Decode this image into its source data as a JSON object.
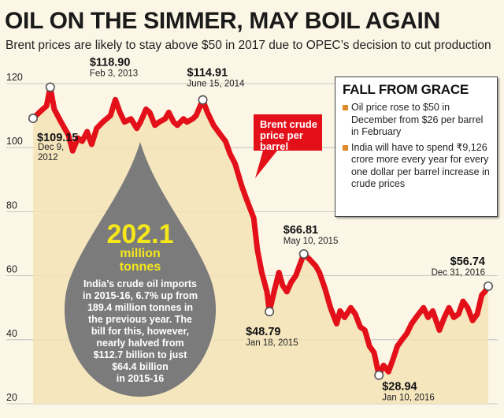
{
  "title": "OIL ON THE SIMMER, MAY BOIL AGAIN",
  "subtitle": "Brent prices are likely to stay above $50 in 2017 due to OPEC’s decision to cut production",
  "info_box": {
    "heading": "FALL FROM GRACE",
    "items": [
      "Oil price rose to $50 in December from $26 per barrel in February",
      "India will have to spend ₹9,126 crore more every year for every one dollar per barrel increase in crude prices"
    ],
    "bullet_color": "#e08a2e"
  },
  "callout": {
    "lines": [
      "Brent crude",
      "price per",
      "barrel"
    ],
    "color": "#e3101a"
  },
  "drop": {
    "big_number": "202.1",
    "unit_lines": [
      "million",
      "tonnes"
    ],
    "text_lines": [
      "India’s crude oil imports",
      "in 2015-16, 6.7% up from",
      "189.4 million tonnes in",
      "the previous year. The",
      "bill for this, however,",
      "nearly halved from",
      "$112.7 billion to just",
      "$64.4 billion",
      "in 2015-16"
    ],
    "color": "#7b7b7b"
  },
  "chart_data": {
    "type": "line",
    "ylim": [
      20,
      120
    ],
    "yticks": [
      20,
      40,
      60,
      80,
      100,
      120
    ],
    "grid": true,
    "x_start": "2012-12-09",
    "x_end": "2016-12-31",
    "series": [
      {
        "name": "Brent crude price per barrel",
        "color": "#e3101a",
        "points": [
          [
            "2012-12-09",
            109.15
          ],
          [
            "2013-01-04",
            111.5
          ],
          [
            "2013-01-22",
            113.0
          ],
          [
            "2013-02-03",
            118.9
          ],
          [
            "2013-02-16",
            112.0
          ],
          [
            "2013-03-10",
            108.0
          ],
          [
            "2013-04-03",
            104.0
          ],
          [
            "2013-04-17",
            99.0
          ],
          [
            "2013-05-04",
            103.0
          ],
          [
            "2013-05-18",
            102.0
          ],
          [
            "2013-06-03",
            105.0
          ],
          [
            "2013-06-18",
            101.0
          ],
          [
            "2013-07-04",
            106.0
          ],
          [
            "2013-07-24",
            108.0
          ],
          [
            "2013-08-18",
            110.0
          ],
          [
            "2013-09-03",
            115.0
          ],
          [
            "2013-09-18",
            111.0
          ],
          [
            "2013-10-03",
            108.0
          ],
          [
            "2013-10-24",
            109.0
          ],
          [
            "2013-11-12",
            106.0
          ],
          [
            "2013-11-24",
            108.0
          ],
          [
            "2013-12-12",
            112.0
          ],
          [
            "2013-12-24",
            111.0
          ],
          [
            "2014-01-10",
            107.0
          ],
          [
            "2014-01-24",
            108.0
          ],
          [
            "2014-02-12",
            109.0
          ],
          [
            "2014-02-24",
            111.0
          ],
          [
            "2014-03-12",
            108.0
          ],
          [
            "2014-03-24",
            107.0
          ],
          [
            "2014-04-13",
            109.0
          ],
          [
            "2014-04-24",
            108.0
          ],
          [
            "2014-05-13",
            109.0
          ],
          [
            "2014-05-24",
            110.0
          ],
          [
            "2014-06-15",
            114.91
          ],
          [
            "2014-06-30",
            111.0
          ],
          [
            "2014-07-20",
            107.0
          ],
          [
            "2014-08-12",
            104.0
          ],
          [
            "2014-08-28",
            102.0
          ],
          [
            "2014-09-12",
            98.0
          ],
          [
            "2014-09-28",
            95.0
          ],
          [
            "2014-10-20",
            88.0
          ],
          [
            "2014-11-04",
            84.0
          ],
          [
            "2014-11-28",
            78.0
          ],
          [
            "2014-12-10",
            68.0
          ],
          [
            "2014-12-24",
            61.0
          ],
          [
            "2015-01-10",
            55.0
          ],
          [
            "2015-01-18",
            48.79
          ],
          [
            "2015-02-02",
            55.0
          ],
          [
            "2015-02-18",
            61.0
          ],
          [
            "2015-03-02",
            57.0
          ],
          [
            "2015-03-16",
            55.0
          ],
          [
            "2015-03-30",
            58.0
          ],
          [
            "2015-04-14",
            60.0
          ],
          [
            "2015-05-10",
            66.81
          ],
          [
            "2015-05-30",
            65.0
          ],
          [
            "2015-06-18",
            63.0
          ],
          [
            "2015-06-30",
            61.0
          ],
          [
            "2015-07-18",
            56.0
          ],
          [
            "2015-08-05",
            50.0
          ],
          [
            "2015-08-25",
            45.0
          ],
          [
            "2015-09-05",
            49.0
          ],
          [
            "2015-09-20",
            47.0
          ],
          [
            "2015-10-10",
            50.0
          ],
          [
            "2015-10-25",
            48.0
          ],
          [
            "2015-11-10",
            44.0
          ],
          [
            "2015-11-25",
            43.0
          ],
          [
            "2015-12-10",
            38.0
          ],
          [
            "2015-12-25",
            36.0
          ],
          [
            "2016-01-10",
            28.94
          ],
          [
            "2016-01-25",
            32.0
          ],
          [
            "2016-02-10",
            30.0
          ],
          [
            "2016-02-25",
            34.0
          ],
          [
            "2016-03-10",
            38.0
          ],
          [
            "2016-03-25",
            40.0
          ],
          [
            "2016-04-10",
            42.0
          ],
          [
            "2016-04-25",
            45.0
          ],
          [
            "2016-05-10",
            47.0
          ],
          [
            "2016-06-03",
            50.0
          ],
          [
            "2016-06-18",
            47.0
          ],
          [
            "2016-07-03",
            49.0
          ],
          [
            "2016-07-25",
            43.0
          ],
          [
            "2016-08-10",
            47.0
          ],
          [
            "2016-08-25",
            50.0
          ],
          [
            "2016-09-10",
            47.0
          ],
          [
            "2016-09-25",
            48.0
          ],
          [
            "2016-10-10",
            52.0
          ],
          [
            "2016-10-25",
            50.0
          ],
          [
            "2016-11-10",
            46.0
          ],
          [
            "2016-11-25",
            48.0
          ],
          [
            "2016-12-10",
            54.0
          ],
          [
            "2016-12-20",
            55.0
          ],
          [
            "2016-12-31",
            56.74
          ]
        ]
      }
    ],
    "annotations": [
      {
        "date": "2012-12-09",
        "value_label": "$109.15",
        "date_label": [
          "Dec 9,",
          "2012"
        ]
      },
      {
        "date": "2013-02-03",
        "value_label": "$118.90",
        "date_label": [
          "Feb 3, 2013"
        ]
      },
      {
        "date": "2014-06-15",
        "value_label": "$114.91",
        "date_label": [
          "June 15, 2014"
        ]
      },
      {
        "date": "2015-01-18",
        "value_label": "$48.79",
        "date_label": [
          "Jan 18, 2015"
        ]
      },
      {
        "date": "2015-05-10",
        "value_label": "$66.81",
        "date_label": [
          "May 10, 2015"
        ]
      },
      {
        "date": "2016-01-10",
        "value_label": "$28.94",
        "date_label": [
          "Jan 10, 2016"
        ]
      },
      {
        "date": "2016-12-31",
        "value_label": "$56.74",
        "date_label": [
          "Dec 31, 2016"
        ]
      }
    ]
  }
}
